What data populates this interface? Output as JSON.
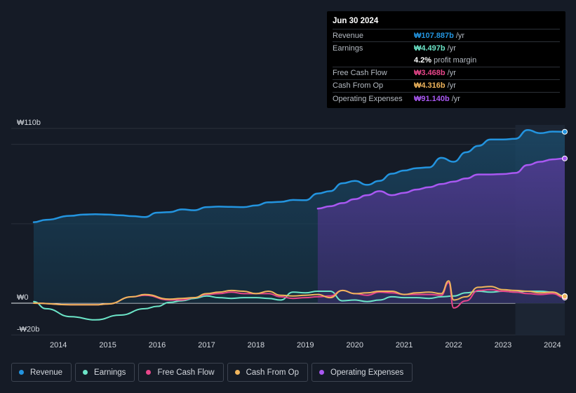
{
  "tooltip": {
    "date": "Jun 30 2024",
    "rows": [
      {
        "label": "Revenue",
        "value": "₩107.887b",
        "unit": "/yr",
        "color": "#2394df"
      },
      {
        "label": "Earnings",
        "value": "₩4.497b",
        "unit": "/yr",
        "color": "#6ce5c8"
      },
      {
        "label": "",
        "value": "4.2%",
        "unit": "profit margin",
        "color": "#ffffff"
      },
      {
        "label": "Free Cash Flow",
        "value": "₩3.468b",
        "unit": "/yr",
        "color": "#e8468a"
      },
      {
        "label": "Cash From Op",
        "value": "₩4.316b",
        "unit": "/yr",
        "color": "#f0b55c"
      },
      {
        "label": "Operating Expenses",
        "value": "₩91.140b",
        "unit": "/yr",
        "color": "#a958f2"
      }
    ]
  },
  "legend": [
    {
      "label": "Revenue",
      "color": "#2394df"
    },
    {
      "label": "Earnings",
      "color": "#6ce5c8"
    },
    {
      "label": "Free Cash Flow",
      "color": "#e8468a"
    },
    {
      "label": "Cash From Op",
      "color": "#f0b55c"
    },
    {
      "label": "Operating Expenses",
      "color": "#a958f2"
    }
  ],
  "chart_data": {
    "type": "area",
    "title": "",
    "xlabel": "",
    "ylabel": "",
    "ylim": [
      -20,
      110
    ],
    "y_tick_labels": [
      {
        "value": 110,
        "label": "₩110b"
      },
      {
        "value": 0,
        "label": "₩0"
      },
      {
        "value": -20,
        "label": "-₩20b"
      }
    ],
    "x_tick_labels": [
      "2014",
      "2015",
      "2016",
      "2017",
      "2018",
      "2019",
      "2020",
      "2021",
      "2022",
      "2023",
      "2024"
    ],
    "xlim": [
      2013.3,
      2024.5
    ],
    "highlight_from": 2023.5,
    "series": [
      {
        "name": "Revenue",
        "color": "#2394df",
        "fill": true,
        "points": [
          [
            2013.75,
            51
          ],
          [
            2014.0,
            52.5
          ],
          [
            2014.5,
            55
          ],
          [
            2014.75,
            55.8
          ],
          [
            2015.0,
            56
          ],
          [
            2015.25,
            55.8
          ],
          [
            2015.5,
            55.3
          ],
          [
            2015.75,
            54.8
          ],
          [
            2016.0,
            54.2
          ],
          [
            2016.25,
            57
          ],
          [
            2016.5,
            57.3
          ],
          [
            2016.75,
            59
          ],
          [
            2017.0,
            58.5
          ],
          [
            2017.25,
            60.5
          ],
          [
            2017.5,
            60.8
          ],
          [
            2017.75,
            60.6
          ],
          [
            2018.0,
            60.5
          ],
          [
            2018.25,
            61.5
          ],
          [
            2018.5,
            63.5
          ],
          [
            2018.75,
            63.8
          ],
          [
            2019.0,
            65
          ],
          [
            2019.25,
            64.8
          ],
          [
            2019.5,
            69
          ],
          [
            2019.75,
            70.5
          ],
          [
            2020.0,
            75.5
          ],
          [
            2020.25,
            77
          ],
          [
            2020.5,
            74.5
          ],
          [
            2020.75,
            77
          ],
          [
            2021.0,
            81.5
          ],
          [
            2021.25,
            83.5
          ],
          [
            2021.5,
            85
          ],
          [
            2021.75,
            85.5
          ],
          [
            2022.0,
            91.5
          ],
          [
            2022.25,
            89
          ],
          [
            2022.5,
            95
          ],
          [
            2022.75,
            99
          ],
          [
            2023.0,
            103
          ],
          [
            2023.25,
            103
          ],
          [
            2023.5,
            103.5
          ],
          [
            2023.75,
            109
          ],
          [
            2024.0,
            107
          ],
          [
            2024.25,
            108
          ],
          [
            2024.5,
            107.9
          ]
        ]
      },
      {
        "name": "Operating Expenses",
        "color": "#a958f2",
        "fill": true,
        "points": [
          [
            2019.5,
            59.5
          ],
          [
            2019.75,
            61
          ],
          [
            2020.0,
            63
          ],
          [
            2020.25,
            65.5
          ],
          [
            2020.5,
            68
          ],
          [
            2020.75,
            70.5
          ],
          [
            2021.0,
            68
          ],
          [
            2021.25,
            69.5
          ],
          [
            2021.5,
            71.5
          ],
          [
            2021.75,
            73
          ],
          [
            2022.0,
            75
          ],
          [
            2022.25,
            76.5
          ],
          [
            2022.5,
            78.5
          ],
          [
            2022.75,
            81
          ],
          [
            2023.0,
            81
          ],
          [
            2023.25,
            81.3
          ],
          [
            2023.5,
            82
          ],
          [
            2023.75,
            87
          ],
          [
            2024.0,
            89
          ],
          [
            2024.25,
            90.5
          ],
          [
            2024.5,
            91.1
          ]
        ]
      },
      {
        "name": "Earnings",
        "color": "#6ce5c8",
        "fill": false,
        "points": [
          [
            2013.75,
            1
          ],
          [
            2014.0,
            -3.5
          ],
          [
            2014.5,
            -8.5
          ],
          [
            2015.0,
            -10.5
          ],
          [
            2015.5,
            -7.5
          ],
          [
            2016.0,
            -3.5
          ],
          [
            2016.25,
            -2
          ],
          [
            2016.5,
            0.5
          ],
          [
            2016.75,
            1.5
          ],
          [
            2017.0,
            3
          ],
          [
            2017.25,
            4.5
          ],
          [
            2017.5,
            3.5
          ],
          [
            2017.75,
            3
          ],
          [
            2018.0,
            3.5
          ],
          [
            2018.25,
            3.5
          ],
          [
            2018.5,
            3
          ],
          [
            2018.75,
            2
          ],
          [
            2019.0,
            7
          ],
          [
            2019.25,
            6.5
          ],
          [
            2019.5,
            7.5
          ],
          [
            2019.75,
            7.5
          ],
          [
            2020.0,
            1.5
          ],
          [
            2020.25,
            2
          ],
          [
            2020.5,
            1
          ],
          [
            2020.75,
            2
          ],
          [
            2021.0,
            4
          ],
          [
            2021.25,
            3.5
          ],
          [
            2021.5,
            3.5
          ],
          [
            2021.75,
            3
          ],
          [
            2022.0,
            4
          ],
          [
            2022.25,
            4.5
          ],
          [
            2022.5,
            6.5
          ],
          [
            2022.75,
            7.5
          ],
          [
            2023.0,
            7
          ],
          [
            2023.25,
            7.5
          ],
          [
            2023.5,
            7
          ],
          [
            2023.75,
            7.5
          ],
          [
            2024.0,
            7.5
          ],
          [
            2024.25,
            7
          ],
          [
            2024.5,
            4.5
          ]
        ]
      },
      {
        "name": "Free Cash Flow",
        "color": "#e8468a",
        "fill": false,
        "points": [
          [
            2013.75,
            0
          ],
          [
            2014.5,
            -1
          ],
          [
            2015.0,
            -1
          ],
          [
            2015.25,
            -0.5
          ],
          [
            2015.75,
            4
          ],
          [
            2016.0,
            5
          ],
          [
            2016.5,
            2
          ],
          [
            2016.75,
            2
          ],
          [
            2017.0,
            3.5
          ],
          [
            2017.25,
            5.5
          ],
          [
            2017.5,
            6
          ],
          [
            2017.75,
            7
          ],
          [
            2018.0,
            6
          ],
          [
            2018.25,
            6
          ],
          [
            2018.5,
            6
          ],
          [
            2018.75,
            4
          ],
          [
            2019.0,
            3
          ],
          [
            2019.25,
            3.5
          ],
          [
            2019.5,
            4
          ],
          [
            2019.75,
            4.5
          ],
          [
            2020.0,
            8
          ],
          [
            2020.25,
            6
          ],
          [
            2020.5,
            5
          ],
          [
            2020.75,
            7
          ],
          [
            2021.0,
            6.5
          ],
          [
            2021.25,
            5.5
          ],
          [
            2021.5,
            5.5
          ],
          [
            2021.75,
            5.5
          ],
          [
            2022.0,
            5
          ],
          [
            2022.15,
            13
          ],
          [
            2022.25,
            -3
          ],
          [
            2022.5,
            1.5
          ],
          [
            2022.75,
            8
          ],
          [
            2023.0,
            8.5
          ],
          [
            2023.25,
            7.5
          ],
          [
            2023.5,
            7
          ],
          [
            2023.75,
            6
          ],
          [
            2024.0,
            5.5
          ],
          [
            2024.25,
            6
          ],
          [
            2024.5,
            3.5
          ]
        ]
      },
      {
        "name": "Cash From Op",
        "color": "#f0b55c",
        "fill": false,
        "points": [
          [
            2013.75,
            0
          ],
          [
            2014.5,
            -1
          ],
          [
            2015.0,
            -1
          ],
          [
            2015.25,
            -0.5
          ],
          [
            2015.75,
            4
          ],
          [
            2016.0,
            5.5
          ],
          [
            2016.5,
            2.5
          ],
          [
            2016.75,
            3
          ],
          [
            2017.0,
            3.5
          ],
          [
            2017.25,
            6
          ],
          [
            2017.5,
            7
          ],
          [
            2017.75,
            8
          ],
          [
            2018.0,
            7.5
          ],
          [
            2018.25,
            6
          ],
          [
            2018.5,
            7.5
          ],
          [
            2018.75,
            5
          ],
          [
            2019.0,
            4.5
          ],
          [
            2019.25,
            5
          ],
          [
            2019.5,
            5.5
          ],
          [
            2019.75,
            3.5
          ],
          [
            2020.0,
            8
          ],
          [
            2020.25,
            6
          ],
          [
            2020.5,
            6.5
          ],
          [
            2020.75,
            7.5
          ],
          [
            2021.0,
            7.5
          ],
          [
            2021.25,
            5.5
          ],
          [
            2021.5,
            6.5
          ],
          [
            2021.75,
            7
          ],
          [
            2022.0,
            6
          ],
          [
            2022.15,
            14
          ],
          [
            2022.25,
            2
          ],
          [
            2022.5,
            4
          ],
          [
            2022.75,
            10
          ],
          [
            2023.0,
            10.5
          ],
          [
            2023.25,
            8.5
          ],
          [
            2023.5,
            8
          ],
          [
            2023.75,
            7.5
          ],
          [
            2024.0,
            6.5
          ],
          [
            2024.25,
            7
          ],
          [
            2024.5,
            4.3
          ]
        ]
      }
    ]
  }
}
